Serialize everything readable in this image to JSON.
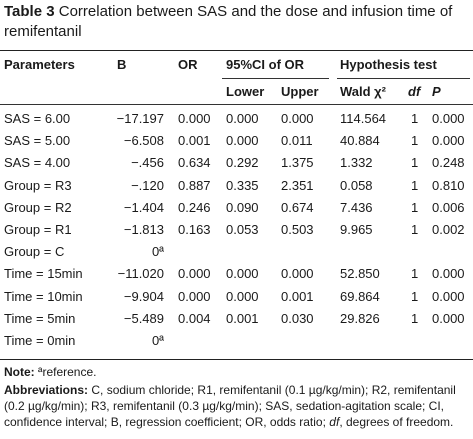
{
  "title": {
    "label": "Table 3",
    "text": "Correlation between SAS and the dose and infusion time of remifentanil"
  },
  "header": {
    "parameters": "Parameters",
    "b": "B",
    "or": "OR",
    "ci": "95%CI of OR",
    "hypothesis": "Hypothesis test",
    "lower": "Lower",
    "upper": "Upper",
    "wald": "Wald χ²",
    "df": "df",
    "p": "P"
  },
  "rows": [
    {
      "param": "SAS = 6.00",
      "b": "−17.197",
      "or": "0.000",
      "lower": "0.000",
      "upper": "0.000",
      "wald": "114.564",
      "df": "1",
      "p": "0.000"
    },
    {
      "param": "SAS = 5.00",
      "b": "−6.508",
      "or": "0.001",
      "lower": "0.000",
      "upper": "0.011",
      "wald": "40.884",
      "df": "1",
      "p": "0.000"
    },
    {
      "param": "SAS = 4.00",
      "b": "−.456",
      "or": "0.634",
      "lower": "0.292",
      "upper": "1.375",
      "wald": "1.332",
      "df": "1",
      "p": "0.248"
    },
    {
      "param": "Group = R3",
      "b": "−.120",
      "or": "0.887",
      "lower": "0.335",
      "upper": "2.351",
      "wald": "0.058",
      "df": "1",
      "p": "0.810"
    },
    {
      "param": "Group = R2",
      "b": "−1.404",
      "or": "0.246",
      "lower": "0.090",
      "upper": "0.674",
      "wald": "7.436",
      "df": "1",
      "p": "0.006"
    },
    {
      "param": "Group = R1",
      "b": "−1.813",
      "or": "0.163",
      "lower": "0.053",
      "upper": "0.503",
      "wald": "9.965",
      "df": "1",
      "p": "0.002"
    },
    {
      "param": "Group = C",
      "b": "0ª",
      "or": "",
      "lower": "",
      "upper": "",
      "wald": "",
      "df": "",
      "p": ""
    },
    {
      "param": "Time = 15min",
      "b": "−11.020",
      "or": "0.000",
      "lower": "0.000",
      "upper": "0.000",
      "wald": "52.850",
      "df": "1",
      "p": "0.000"
    },
    {
      "param": "Time = 10min",
      "b": "−9.904",
      "or": "0.000",
      "lower": "0.000",
      "upper": "0.001",
      "wald": "69.864",
      "df": "1",
      "p": "0.000"
    },
    {
      "param": "Time = 5min",
      "b": "−5.489",
      "or": "0.004",
      "lower": "0.001",
      "upper": "0.030",
      "wald": "29.826",
      "df": "1",
      "p": "0.000"
    },
    {
      "param": "Time = 0min",
      "b": "0ª",
      "or": "",
      "lower": "",
      "upper": "",
      "wald": "",
      "df": "",
      "p": ""
    }
  ],
  "notes": {
    "note_label": "Note:",
    "note_text": "ªreference.",
    "abbr_label": "Abbreviations:",
    "abbr_text": "C, sodium chloride; R1, remifentanil (0.1 µg/kg/min); R2, remifentanil (0.2 µg/kg/min); R3, remifentanil (0.3 µg/kg/min); SAS, sedation-agitation scale; CI, confidence interval; B, regression coefficient; OR, odds ratio;",
    "abbr_df": "df",
    "abbr_end": ", degrees of freedom."
  }
}
